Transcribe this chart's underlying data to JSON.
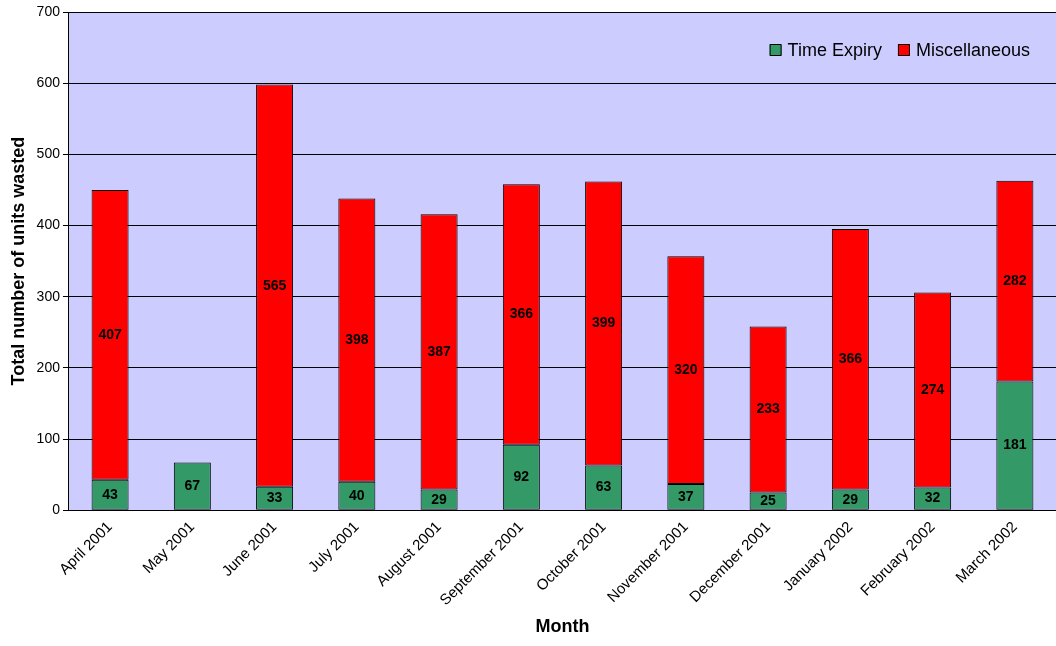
{
  "chart_data": {
    "type": "bar",
    "stacked": true,
    "xlabel": "Month",
    "ylabel": "Total number of units wasted",
    "categories": [
      "April 2001",
      "May 2001",
      "June 2001",
      "July 2001",
      "August 2001",
      "September 2001",
      "October 2001",
      "November 2001",
      "December 2001",
      "January 2002",
      "February 2002",
      "March 2002"
    ],
    "series": [
      {
        "name": "Time Expiry",
        "color": "#339966",
        "values": [
          43,
          67,
          33,
          40,
          29,
          92,
          63,
          37,
          25,
          29,
          32,
          181
        ]
      },
      {
        "name": "Miscellaneous",
        "color": "#ff0000",
        "values": [
          407,
          null,
          565,
          398,
          387,
          366,
          399,
          320,
          233,
          366,
          274,
          282
        ]
      }
    ],
    "ylim": [
      0,
      700
    ],
    "yticks": [
      0,
      100,
      200,
      300,
      400,
      500,
      600,
      700
    ],
    "grid": "y",
    "legend": "top right",
    "data_labels": true
  }
}
